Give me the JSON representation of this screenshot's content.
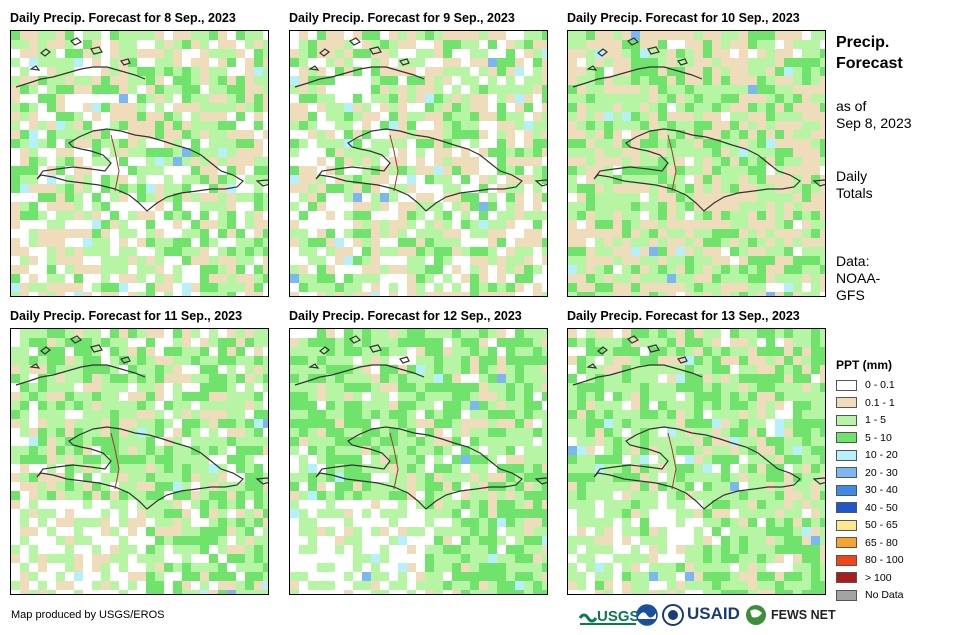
{
  "panels": [
    {
      "title": "Daily Precip. Forecast for 8 Sep., 2023",
      "seed": 11,
      "wet": 0.4,
      "dry": 0.28,
      "white": 0.22,
      "whiteSW": 0.1
    },
    {
      "title": "Daily Precip. Forecast for 9 Sep., 2023",
      "seed": 27,
      "wet": 0.38,
      "dry": 0.3,
      "white": 0.28,
      "whiteSW": 0.0
    },
    {
      "title": "Daily Precip. Forecast for 10 Sep., 2023",
      "seed": 43,
      "wet": 0.46,
      "dry": 0.4,
      "white": 0.04,
      "whiteSW": 0.0
    },
    {
      "title": "Daily Precip. Forecast for 11 Sep., 2023",
      "seed": 59,
      "wet": 0.5,
      "dry": 0.18,
      "white": 0.16,
      "whiteSW": 0.35
    },
    {
      "title": "Daily Precip. Forecast for 12 Sep., 2023",
      "seed": 71,
      "wet": 0.55,
      "dry": 0.12,
      "white": 0.1,
      "whiteSW": 0.45
    },
    {
      "title": "Daily Precip. Forecast for 13 Sep., 2023",
      "seed": 89,
      "wet": 0.55,
      "dry": 0.16,
      "white": 0.08,
      "whiteSW": 0.3
    }
  ],
  "sidebar": {
    "title_line1": "Precip.",
    "title_line2": "Forecast",
    "asof_line1": "as of",
    "asof_line2": "Sep 8, 2023",
    "totals_line1": "Daily",
    "totals_line2": "Totals",
    "data_line1": "Data:",
    "data_line2": "NOAA-",
    "data_line3": "GFS"
  },
  "legend": {
    "title": "PPT (mm)",
    "items": [
      {
        "label": "0 - 0.1",
        "color": "#ffffff"
      },
      {
        "label": "0.1 - 1",
        "color": "#efdcbb"
      },
      {
        "label": "1 - 5",
        "color": "#b5f5a3"
      },
      {
        "label": "5 - 10",
        "color": "#6fe36b"
      },
      {
        "label": "10 - 20",
        "color": "#b6f0fb"
      },
      {
        "label": "20 - 30",
        "color": "#7db7f1"
      },
      {
        "label": "30 - 40",
        "color": "#3f8ae3"
      },
      {
        "label": "40 - 50",
        "color": "#1f56c9"
      },
      {
        "label": "50 - 65",
        "color": "#fde98c"
      },
      {
        "label": "65 - 80",
        "color": "#f9a32f"
      },
      {
        "label": "80 - 100",
        "color": "#f2441b"
      },
      {
        "label": "> 100",
        "color": "#a51d1d"
      },
      {
        "label": "No Data",
        "color": "#a3a3a3"
      }
    ]
  },
  "footer": {
    "credit": "Map produced by USGS/EROS",
    "logo_usgs": "USGS",
    "logo_usaid": "USAID",
    "logo_fews": "FEWS NET"
  }
}
